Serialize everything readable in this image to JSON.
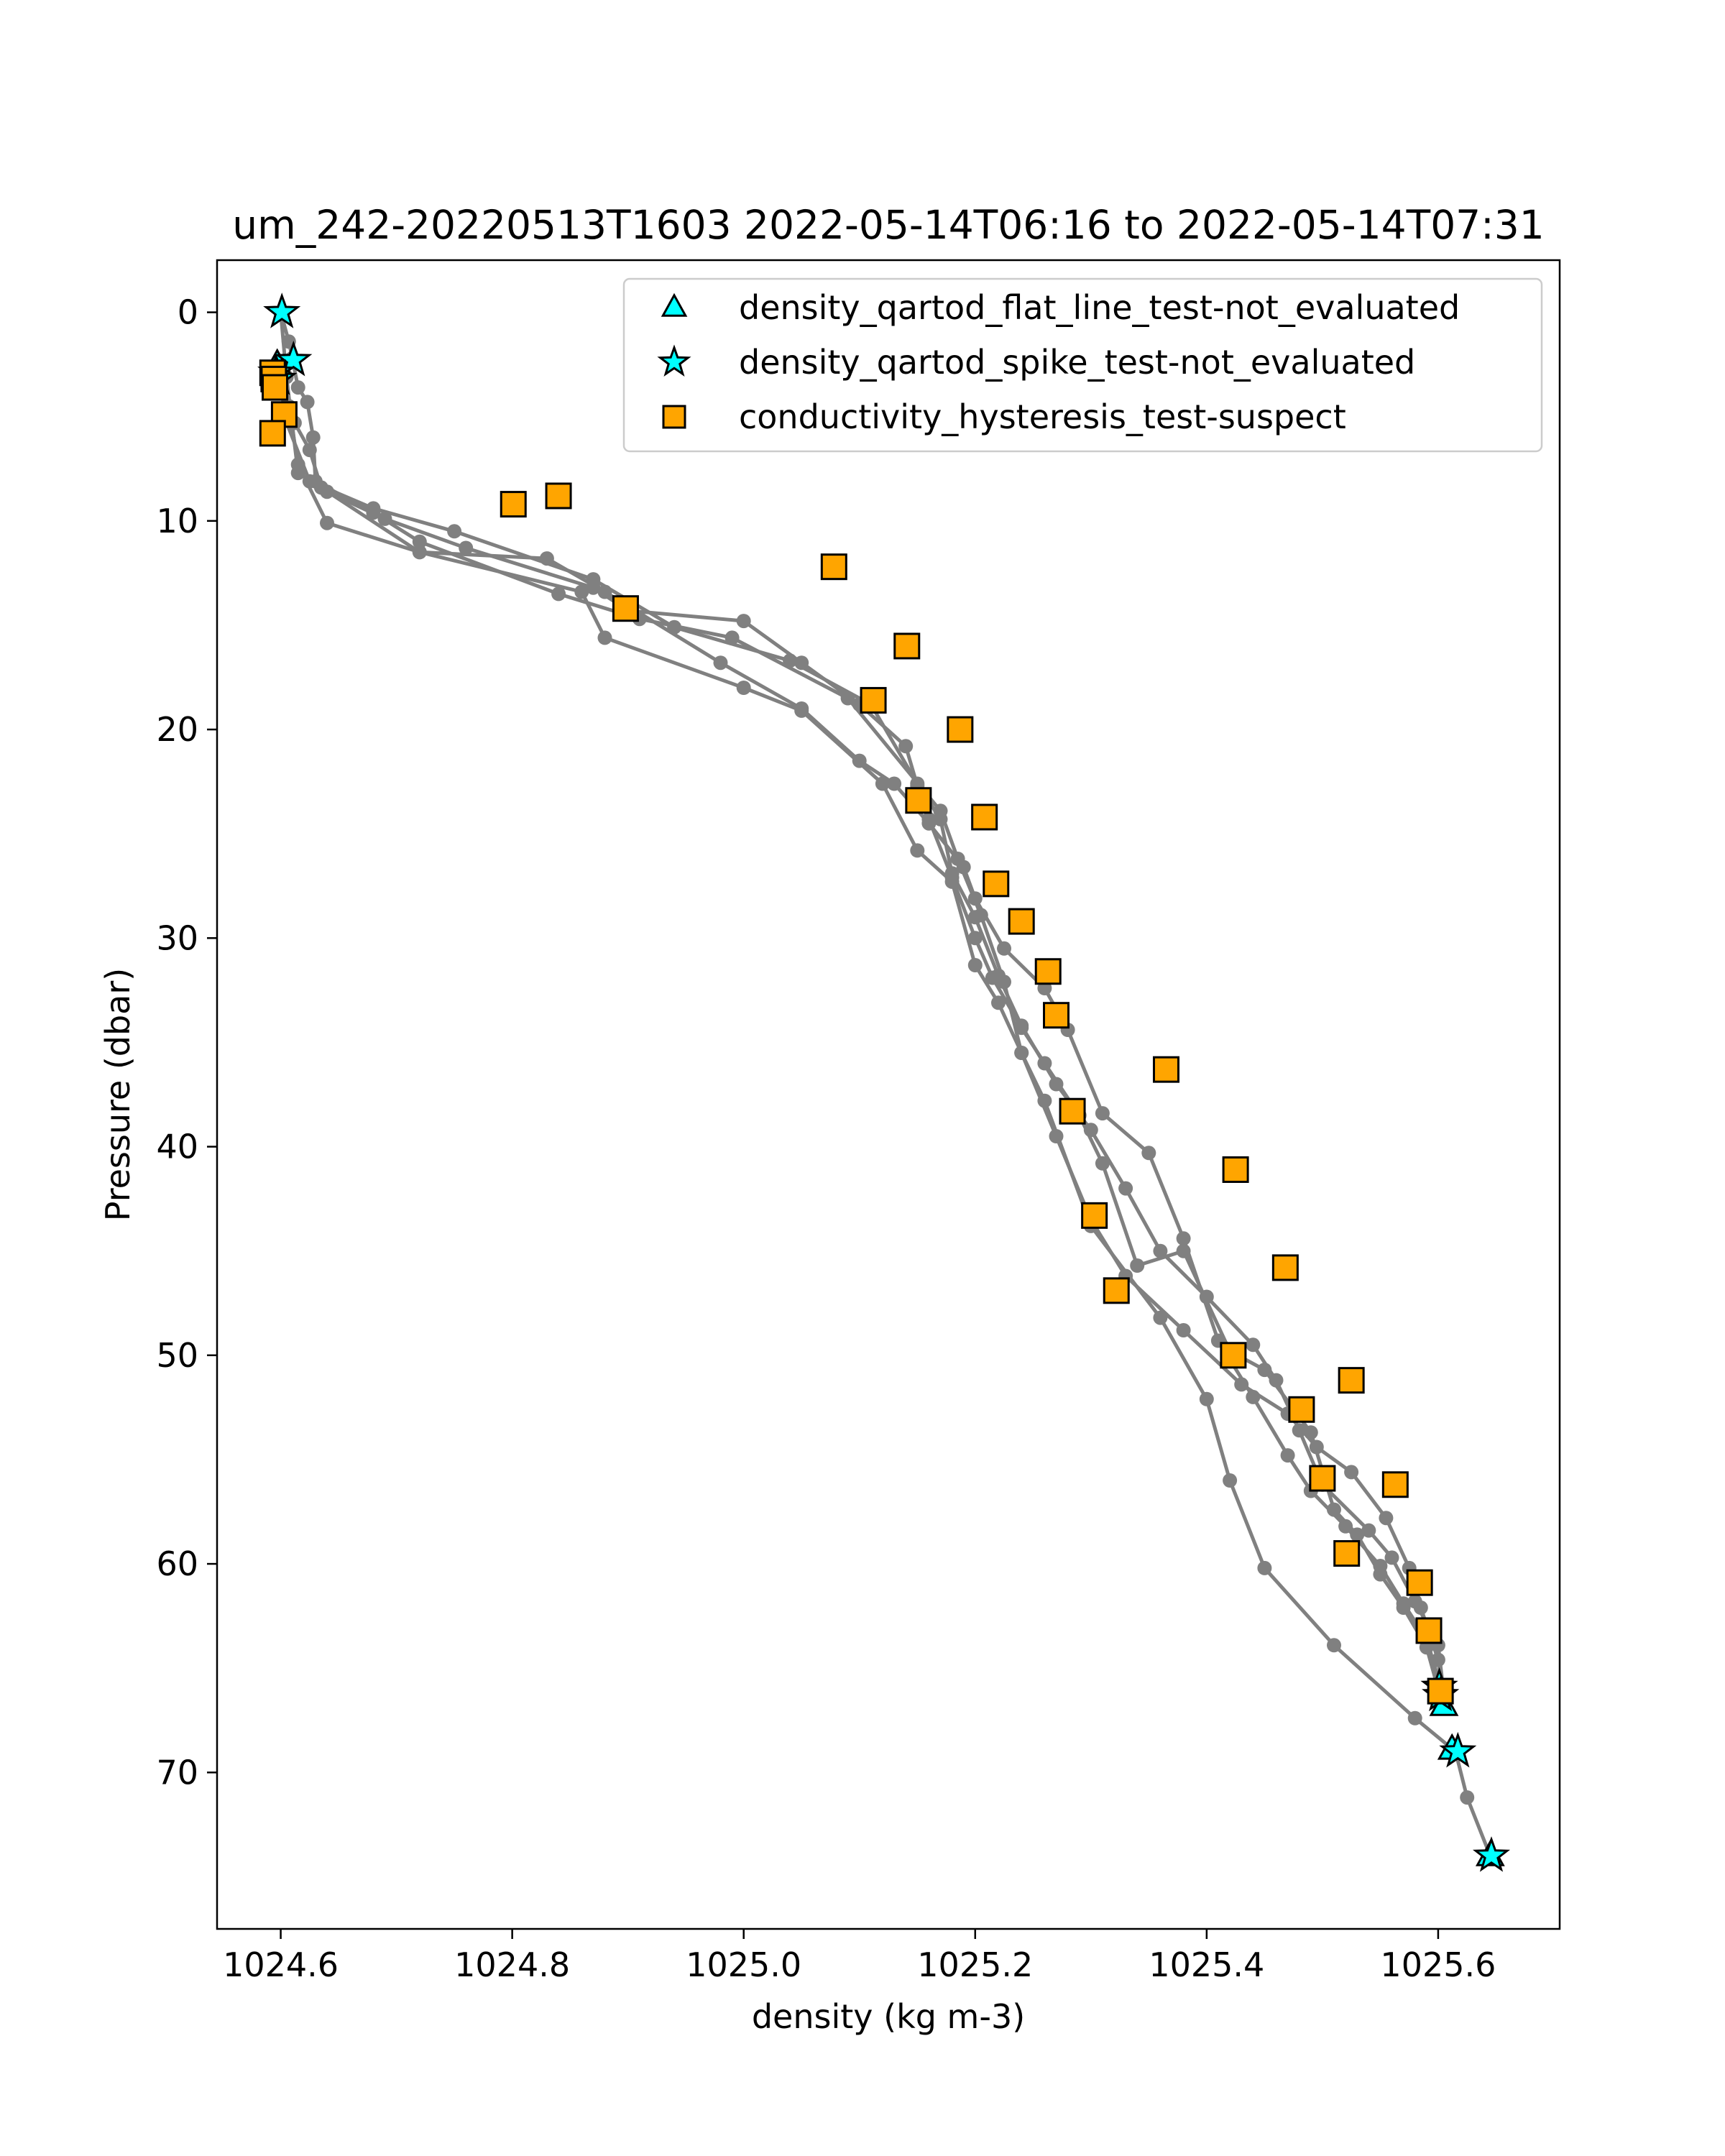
{
  "chart_data": {
    "type": "scatter",
    "title": "um_242-20220513T1603 2022-05-14T06:16 to 2022-05-14T07:31",
    "xlabel": "density (kg m-3)",
    "ylabel": "Pressure (dbar)",
    "xlim": [
      1024.545,
      1025.705
    ],
    "ylim": [
      77.5,
      -2.5
    ],
    "y_inverted": true,
    "x_ticks": [
      1024.6,
      1024.8,
      1025.0,
      1025.2,
      1025.4,
      1025.6
    ],
    "x_tick_labels": [
      "1024.6",
      "1024.8",
      "1025.0",
      "1025.2",
      "1025.4",
      "1025.6"
    ],
    "y_ticks": [
      0,
      10,
      20,
      30,
      40,
      50,
      60,
      70
    ],
    "y_tick_labels": [
      "0",
      "10",
      "20",
      "30",
      "40",
      "50",
      "60",
      "70"
    ],
    "grid": false,
    "legend_position": "top-right",
    "colors": {
      "profile_line": "#808080",
      "flat_line": "#00ffff",
      "spike": "#00ffff",
      "hysteresis": "#ffa500",
      "marker_edge": "#000000"
    },
    "profiles": [
      [
        [
          1024.6,
          0.0
        ],
        [
          1024.607,
          1.4
        ],
        [
          1024.61,
          2.2
        ],
        [
          1024.615,
          3.6
        ],
        [
          1024.623,
          4.3
        ],
        [
          1024.628,
          6.0
        ],
        [
          1024.63,
          8.1
        ],
        [
          1024.68,
          9.6
        ],
        [
          1024.72,
          11.0
        ],
        [
          1024.84,
          13.5
        ],
        [
          1024.91,
          14.7
        ],
        [
          1024.99,
          15.6
        ],
        [
          1025.09,
          18.5
        ],
        [
          1025.17,
          23.9
        ],
        [
          1025.185,
          26.2
        ],
        [
          1025.205,
          28.9
        ],
        [
          1025.225,
          32.1
        ],
        [
          1025.24,
          35.5
        ],
        [
          1025.27,
          39.5
        ],
        [
          1025.3,
          43.5
        ],
        [
          1025.33,
          46.2
        ],
        [
          1025.38,
          48.8
        ],
        [
          1025.43,
          51.4
        ],
        [
          1025.47,
          52.8
        ],
        [
          1025.495,
          54.4
        ],
        [
          1025.525,
          55.6
        ],
        [
          1025.555,
          57.8
        ],
        [
          1025.575,
          60.2
        ],
        [
          1025.585,
          62.1
        ],
        [
          1025.6,
          64.6
        ],
        [
          1025.605,
          66.6
        ]
      ],
      [
        [
          1024.6,
          0.0
        ],
        [
          1024.605,
          3.1
        ],
        [
          1024.615,
          7.7
        ],
        [
          1024.64,
          8.6
        ],
        [
          1024.69,
          9.9
        ],
        [
          1024.76,
          11.3
        ],
        [
          1024.87,
          13.2
        ],
        [
          1024.9,
          14.3
        ],
        [
          1025.0,
          14.8
        ],
        [
          1025.05,
          16.8
        ],
        [
          1025.1,
          18.8
        ],
        [
          1025.14,
          20.8
        ],
        [
          1025.15,
          22.7
        ],
        [
          1025.16,
          24.3
        ],
        [
          1025.18,
          27.1
        ],
        [
          1025.2,
          30.0
        ],
        [
          1025.215,
          31.9
        ],
        [
          1025.24,
          34.3
        ],
        [
          1025.26,
          36.0
        ],
        [
          1025.29,
          38.5
        ],
        [
          1025.31,
          40.8
        ],
        [
          1025.34,
          45.7
        ],
        [
          1025.38,
          45.0
        ],
        [
          1025.42,
          49.8
        ],
        [
          1025.45,
          50.7
        ],
        [
          1025.49,
          53.7
        ],
        [
          1025.51,
          57.4
        ],
        [
          1025.53,
          58.6
        ],
        [
          1025.55,
          60.5
        ],
        [
          1025.57,
          62.1
        ],
        [
          1025.59,
          64.0
        ],
        [
          1025.6,
          66.0
        ]
      ],
      [
        [
          1024.6,
          3.0
        ],
        [
          1024.612,
          5.3
        ],
        [
          1024.625,
          6.6
        ],
        [
          1024.635,
          8.4
        ],
        [
          1024.72,
          11.5
        ],
        [
          1024.83,
          11.8
        ],
        [
          1024.88,
          13.4
        ],
        [
          1024.98,
          16.8
        ],
        [
          1025.05,
          19.0
        ],
        [
          1025.1,
          21.5
        ],
        [
          1025.13,
          22.6
        ],
        [
          1025.16,
          24.5
        ],
        [
          1025.19,
          26.6
        ],
        [
          1025.2,
          28.1
        ],
        [
          1025.225,
          30.5
        ],
        [
          1025.26,
          32.4
        ],
        [
          1025.28,
          34.4
        ],
        [
          1025.31,
          38.4
        ],
        [
          1025.35,
          40.3
        ],
        [
          1025.38,
          44.4
        ],
        [
          1025.41,
          49.3
        ],
        [
          1025.44,
          52.0
        ],
        [
          1025.47,
          54.8
        ],
        [
          1025.49,
          56.5
        ],
        [
          1025.52,
          58.2
        ],
        [
          1025.55,
          60.1
        ],
        [
          1025.57,
          61.9
        ],
        [
          1025.59,
          63.6
        ],
        [
          1025.605,
          66.4
        ]
      ],
      [
        [
          1024.6,
          3.0
        ],
        [
          1024.607,
          4.5
        ],
        [
          1024.615,
          7.3
        ],
        [
          1024.64,
          10.1
        ],
        [
          1024.72,
          11.5
        ],
        [
          1024.86,
          13.4
        ],
        [
          1024.88,
          15.6
        ],
        [
          1025.0,
          18.0
        ],
        [
          1025.05,
          19.1
        ],
        [
          1025.12,
          22.6
        ],
        [
          1025.15,
          25.8
        ],
        [
          1025.18,
          27.3
        ],
        [
          1025.2,
          31.3
        ],
        [
          1025.22,
          33.1
        ],
        [
          1025.24,
          35.5
        ],
        [
          1025.26,
          37.8
        ],
        [
          1025.3,
          43.8
        ],
        [
          1025.36,
          48.2
        ],
        [
          1025.4,
          52.1
        ],
        [
          1025.42,
          56.0
        ],
        [
          1025.45,
          60.2
        ],
        [
          1025.51,
          63.9
        ],
        [
          1025.58,
          67.4
        ],
        [
          1025.615,
          69.0
        ],
        [
          1025.625,
          71.2
        ],
        [
          1025.645,
          74.0
        ]
      ],
      [
        [
          1024.6,
          2.8
        ],
        [
          1024.603,
          5.0
        ],
        [
          1024.625,
          8.1
        ],
        [
          1024.68,
          9.4
        ],
        [
          1024.75,
          10.5
        ],
        [
          1024.87,
          12.8
        ],
        [
          1024.94,
          15.1
        ],
        [
          1025.04,
          16.7
        ],
        [
          1025.11,
          18.8
        ],
        [
          1025.15,
          22.6
        ],
        [
          1025.17,
          24.3
        ],
        [
          1025.18,
          26.9
        ],
        [
          1025.2,
          29.0
        ],
        [
          1025.22,
          31.8
        ],
        [
          1025.24,
          34.2
        ],
        [
          1025.27,
          37.0
        ],
        [
          1025.3,
          39.2
        ],
        [
          1025.33,
          42.0
        ],
        [
          1025.36,
          45.0
        ],
        [
          1025.4,
          47.2
        ],
        [
          1025.44,
          49.5
        ],
        [
          1025.46,
          51.2
        ],
        [
          1025.48,
          53.6
        ],
        [
          1025.5,
          56.2
        ],
        [
          1025.54,
          58.4
        ],
        [
          1025.56,
          59.7
        ],
        [
          1025.58,
          61.8
        ],
        [
          1025.6,
          63.9
        ],
        [
          1025.605,
          66.3
        ]
      ]
    ],
    "series": [
      {
        "name": "density_qartod_flat_line_test-not_evaluated",
        "marker": "triangle",
        "color": "#00ffff",
        "points": [
          [
            1024.597,
            2.5
          ],
          [
            1025.605,
            66.8
          ],
          [
            1025.612,
            68.9
          ],
          [
            1025.645,
            74.0
          ]
        ]
      },
      {
        "name": "density_qartod_spike_test-not_evaluated",
        "marker": "star",
        "color": "#00ffff",
        "points": [
          [
            1024.601,
            0.0
          ],
          [
            1024.611,
            2.3
          ],
          [
            1024.596,
            2.9
          ],
          [
            1024.598,
            3.2
          ],
          [
            1025.601,
            65.9
          ],
          [
            1025.602,
            66.3
          ],
          [
            1025.617,
            69.0
          ],
          [
            1025.646,
            74.0
          ]
        ]
      },
      {
        "name": "conductivity_hysteresis_test-suspect",
        "marker": "square",
        "color": "#ffa500",
        "points": [
          [
            1024.593,
            2.9
          ],
          [
            1024.594,
            3.2
          ],
          [
            1024.595,
            3.6
          ],
          [
            1024.603,
            4.9
          ],
          [
            1024.593,
            5.8
          ],
          [
            1024.801,
            9.2
          ],
          [
            1024.84,
            8.8
          ],
          [
            1025.078,
            12.2
          ],
          [
            1024.898,
            14.2
          ],
          [
            1025.141,
            16.0
          ],
          [
            1025.112,
            18.6
          ],
          [
            1025.187,
            20.0
          ],
          [
            1025.151,
            23.4
          ],
          [
            1025.208,
            24.2
          ],
          [
            1025.218,
            27.4
          ],
          [
            1025.24,
            29.2
          ],
          [
            1025.263,
            31.6
          ],
          [
            1025.27,
            33.7
          ],
          [
            1025.365,
            36.3
          ],
          [
            1025.284,
            38.3
          ],
          [
            1025.303,
            43.3
          ],
          [
            1025.322,
            46.9
          ],
          [
            1025.425,
            41.1
          ],
          [
            1025.468,
            45.8
          ],
          [
            1025.423,
            50.0
          ],
          [
            1025.525,
            51.2
          ],
          [
            1025.482,
            52.6
          ],
          [
            1025.5,
            55.9
          ],
          [
            1025.521,
            59.5
          ],
          [
            1025.563,
            56.2
          ],
          [
            1025.584,
            60.9
          ],
          [
            1025.592,
            63.2
          ],
          [
            1025.602,
            66.1
          ]
        ]
      }
    ]
  }
}
